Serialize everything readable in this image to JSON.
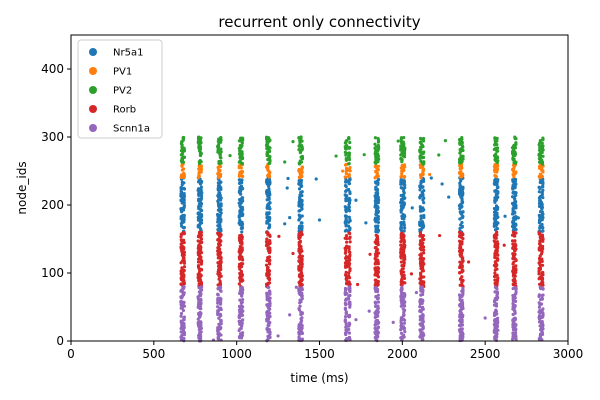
{
  "chart_data": {
    "type": "scatter",
    "title": "recurrent only connectivity",
    "xlabel": "time (ms)",
    "ylabel": "node_ids",
    "xlim": [
      0,
      3000
    ],
    "ylim": [
      0,
      450
    ],
    "xticks": [
      0,
      500,
      1000,
      1500,
      2000,
      2500,
      3000
    ],
    "yticks": [
      0,
      100,
      200,
      300,
      400
    ],
    "grid": false,
    "legend_position": "top-left",
    "burst_times_ms": [
      668,
      680,
      772,
      784,
      890,
      902,
      1020,
      1032,
      1185,
      1197,
      1380,
      1392,
      1660,
      1680,
      1840,
      1852,
      1995,
      2010,
      2110,
      2125,
      2350,
      2362,
      2560,
      2572,
      2670,
      2682,
      2830,
      2845
    ],
    "series": [
      {
        "name": "Nr5a1",
        "color": "#1f77b4",
        "node_range": [
          160,
          240
        ],
        "sparse_times_ms": [
          1290,
          1305,
          1310,
          1320,
          1480,
          1500,
          1720,
          1780,
          2060,
          2175,
          2240,
          2280,
          2620,
          2700
        ]
      },
      {
        "name": "PV1",
        "color": "#ff7f0e",
        "node_range": [
          240,
          260
        ],
        "sparse_times_ms": [
          1640,
          2165
        ]
      },
      {
        "name": "PV2",
        "color": "#2ca02c",
        "node_range": [
          260,
          300
        ],
        "sparse_times_ms": [
          960,
          1290,
          1340,
          1600,
          1770,
          1975,
          2220,
          2260,
          2560
        ]
      },
      {
        "name": "Rorb",
        "color": "#d62728",
        "node_range": [
          80,
          160
        ],
        "sparse_times_ms": [
          1255,
          1340,
          1730,
          1805,
          2055,
          2225,
          2400,
          2615
        ]
      },
      {
        "name": "Scnn1a",
        "color": "#9467bd",
        "node_range": [
          0,
          80
        ],
        "sparse_times_ms": [
          860,
          1250,
          1320,
          1360,
          1720,
          1800,
          1945,
          2085,
          2500,
          2570
        ]
      }
    ]
  }
}
